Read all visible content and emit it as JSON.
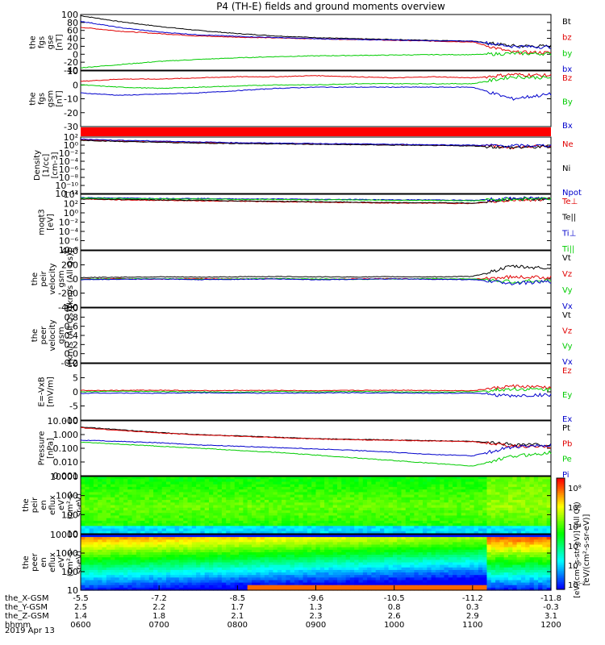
{
  "title": "P4 (TH-E) fields and ground moments overview",
  "date": "2019 Apr 13",
  "colors": {
    "black": "#000000",
    "red": "#e00000",
    "green": "#00cc00",
    "blue": "#0000cc"
  },
  "chart_data": [
    {
      "type": "line",
      "ylabel": [
        "the",
        "fgs",
        "gse",
        "[nT]"
      ],
      "yticks": [
        "100",
        "80",
        "60",
        "40",
        "20",
        "0",
        "-20",
        "-40"
      ],
      "ylim": [
        -40,
        100
      ],
      "series": [
        {
          "name": "Bt",
          "color": "black",
          "values": [
            97,
            82,
            70,
            60,
            52,
            46,
            42,
            39,
            37,
            35,
            33,
            21,
            20
          ]
        },
        {
          "name": "bz",
          "color": "red",
          "values": [
            68,
            58,
            52,
            46,
            43,
            41,
            39,
            37,
            35,
            33,
            31,
            5,
            4
          ]
        },
        {
          "name": "by",
          "color": "green",
          "values": [
            -34,
            -26,
            -18,
            -13,
            -9,
            -6,
            -4,
            -3,
            -2,
            -1,
            -1,
            2,
            1
          ]
        },
        {
          "name": "bx",
          "color": "blue",
          "values": [
            83,
            67,
            56,
            49,
            45,
            42,
            39,
            37,
            36,
            34,
            33,
            20,
            18
          ]
        }
      ]
    },
    {
      "type": "line",
      "ylabel": [
        "the",
        "fgs",
        "gsm",
        "[nT]"
      ],
      "yticks": [
        "10",
        "0",
        "-10",
        "-20",
        "-30"
      ],
      "ylim": [
        -38,
        10
      ],
      "series": [
        {
          "name": "Bz",
          "color": "red",
          "values": [
            1,
            3,
            3,
            4,
            5,
            5,
            6,
            5,
            4,
            5,
            4,
            7,
            6
          ]
        },
        {
          "name": "By",
          "color": "green",
          "values": [
            -2,
            -4,
            -5,
            -4,
            -3,
            -2,
            -2,
            -1,
            -1,
            -1,
            -1,
            5,
            4
          ]
        },
        {
          "name": "Bx",
          "color": "blue",
          "values": [
            -9,
            -11,
            -10,
            -9,
            -7,
            -5,
            -4,
            -4,
            -4,
            -4,
            -4,
            -14,
            -10
          ]
        }
      ]
    },
    {
      "type": "line",
      "ylabel": [
        "Density",
        "[1/cc]",
        "[cm-3]"
      ],
      "yticks": [
        "10²",
        "10⁰",
        "10⁻²",
        "10⁻⁴",
        "10⁻⁶",
        "10⁻⁸",
        "10⁻¹⁰",
        "10⁻¹²"
      ],
      "ylim": [
        -12,
        2
      ],
      "log": true,
      "series": [
        {
          "name": "Ne",
          "color": "red",
          "values": [
            1.3,
            1.0,
            0.8,
            0.6,
            0.5,
            0.4,
            0.3,
            0.2,
            0.1,
            0.0,
            -0.1,
            -0.5,
            -0.3
          ]
        },
        {
          "name": "Ni",
          "color": "black",
          "values": [
            1.2,
            0.9,
            0.7,
            0.5,
            0.4,
            0.3,
            0.2,
            0.1,
            0.0,
            -0.1,
            -0.2,
            -0.6,
            -0.4
          ]
        },
        {
          "name": "Npot",
          "color": "blue",
          "values": [
            1.5,
            1.2,
            1.0,
            0.8,
            0.6,
            0.5,
            0.4,
            0.3,
            0.2,
            0.1,
            0.0,
            -0.2,
            -0.1
          ]
        }
      ]
    },
    {
      "type": "line",
      "ylabel": [
        "moqt3",
        "[eV]"
      ],
      "yticks": [
        "10⁴",
        "10²",
        "10⁰",
        "10⁻²",
        "10⁻⁴",
        "10⁻⁶",
        "10⁻⁸"
      ],
      "ylim": [
        -8,
        4
      ],
      "log": true,
      "series": [
        {
          "name": "Te⊥",
          "color": "red",
          "values": [
            3.0,
            2.8,
            2.7,
            2.6,
            2.5,
            2.4,
            2.3,
            2.2,
            2.1,
            2.1,
            2.0,
            2.8,
            2.9
          ]
        },
        {
          "name": "Te||",
          "color": "black",
          "values": [
            3.0,
            2.9,
            2.8,
            2.7,
            2.6,
            2.5,
            2.4,
            2.3,
            2.2,
            2.2,
            2.1,
            2.9,
            3.0
          ]
        },
        {
          "name": "Ti⊥",
          "color": "blue",
          "values": [
            3.3,
            3.2,
            3.1,
            3.1,
            3.0,
            3.0,
            2.9,
            2.9,
            2.8,
            2.8,
            2.7,
            3.1,
            3.2
          ]
        },
        {
          "name": "Ti||",
          "color": "green",
          "values": [
            3.2,
            3.1,
            3.0,
            3.0,
            2.9,
            2.9,
            2.8,
            2.8,
            2.7,
            2.7,
            2.6,
            3.0,
            3.1
          ]
        }
      ]
    },
    {
      "type": "line",
      "ylabel": [
        "the",
        "peir",
        "velocity",
        "gsm",
        "[km/s (All Qs)]"
      ],
      "yticks": [
        "400",
        "200",
        "0",
        "-200",
        "-400"
      ],
      "ylim": [
        -400,
        400
      ],
      "series": [
        {
          "name": "Vt",
          "color": "black",
          "values": [
            20,
            25,
            30,
            25,
            30,
            35,
            30,
            28,
            32,
            30,
            35,
            180,
            150
          ]
        },
        {
          "name": "Vz",
          "color": "red",
          "values": [
            0,
            5,
            -5,
            5,
            0,
            5,
            -5,
            0,
            5,
            0,
            -5,
            30,
            20
          ]
        },
        {
          "name": "Vy",
          "color": "green",
          "values": [
            -5,
            0,
            5,
            -5,
            0,
            5,
            0,
            -5,
            0,
            5,
            0,
            -40,
            -20
          ]
        },
        {
          "name": "Vx",
          "color": "blue",
          "values": [
            -10,
            -5,
            0,
            -10,
            -5,
            0,
            -10,
            -5,
            0,
            -5,
            -10,
            -60,
            -40
          ]
        }
      ]
    },
    {
      "type": "line",
      "ylabel": [
        "the",
        "peer",
        "velocity",
        "gsm",
        "[km/s (All Qs)]"
      ],
      "yticks": [
        "1.0",
        "0.8",
        "0.6",
        "0.4",
        "0.2",
        "0.0",
        "-0.2"
      ],
      "ylim": [
        -0.2,
        1.0
      ],
      "series": [
        {
          "name": "Vt",
          "color": "black",
          "values": []
        },
        {
          "name": "Vz",
          "color": "red",
          "values": []
        },
        {
          "name": "Vy",
          "color": "green",
          "values": []
        },
        {
          "name": "Vx",
          "color": "blue",
          "values": []
        }
      ]
    },
    {
      "type": "line",
      "ylabel": [
        "E=-VxB",
        "[mV/m]"
      ],
      "yticks": [
        "10",
        "5",
        "0",
        "-5",
        "-10"
      ],
      "ylim": [
        -10,
        10
      ],
      "series": [
        {
          "name": "Ez",
          "color": "red",
          "values": [
            0.5,
            0.5,
            0.6,
            0.4,
            0.5,
            0.5,
            0.4,
            0.5,
            0.6,
            0.5,
            0.4,
            2.0,
            1.5
          ]
        },
        {
          "name": "Ey",
          "color": "green",
          "values": [
            0,
            0.2,
            0.1,
            0,
            -0.1,
            0.1,
            0,
            0.1,
            0,
            -0.1,
            0,
            1.0,
            0.8
          ]
        },
        {
          "name": "Ex",
          "color": "blue",
          "values": [
            -0.5,
            -0.4,
            -0.5,
            -0.3,
            -0.4,
            -0.5,
            -0.4,
            -0.3,
            -0.4,
            -0.5,
            -0.4,
            -1.5,
            -1.0
          ]
        }
      ]
    },
    {
      "type": "line",
      "ylabel": [
        "Pressure",
        "[nPa]"
      ],
      "yticks": [
        "10.000",
        "1.000",
        "0.100",
        "0.010",
        "0.001"
      ],
      "ylim": [
        -3,
        1
      ],
      "log": true,
      "series": [
        {
          "name": "Pt",
          "color": "black",
          "values": [
            0.55,
            0.35,
            0.15,
            0.0,
            -0.1,
            -0.2,
            -0.3,
            -0.35,
            -0.4,
            -0.45,
            -0.5,
            -0.7,
            -0.75
          ]
        },
        {
          "name": "Pb",
          "color": "red",
          "values": [
            0.5,
            0.3,
            0.12,
            -0.02,
            -0.12,
            -0.22,
            -0.32,
            -0.38,
            -0.42,
            -0.47,
            -0.52,
            -0.85,
            -0.9
          ]
        },
        {
          "name": "Pe",
          "color": "green",
          "values": [
            -0.55,
            -0.7,
            -0.85,
            -1.0,
            -1.15,
            -1.3,
            -1.5,
            -1.7,
            -1.9,
            -2.1,
            -2.3,
            -1.6,
            -1.3
          ]
        },
        {
          "name": "Pi",
          "color": "blue",
          "values": [
            -0.4,
            -0.5,
            -0.6,
            -0.75,
            -0.85,
            -0.95,
            -1.05,
            -1.15,
            -1.3,
            -1.45,
            -1.55,
            -0.9,
            -0.8
          ]
        }
      ]
    },
    {
      "type": "heatmap",
      "ylabel": [
        "the",
        "peir",
        "en",
        "eflux",
        "eV",
        "(cm²-s-",
        "sr-eV)"
      ],
      "yticks": [
        "10000",
        "1000",
        "100",
        "10"
      ],
      "ylim": [
        10,
        30000
      ]
    },
    {
      "type": "heatmap",
      "ylabel": [
        "the",
        "peer",
        "en",
        "eflux",
        "eV",
        "(cm²-s-",
        "sr-eV)"
      ],
      "yticks": [
        "10000",
        "1000",
        "100",
        "10"
      ],
      "ylim": [
        10,
        30000
      ]
    }
  ],
  "colorbar": {
    "ticks": [
      "10⁸",
      "10⁶",
      "10⁴",
      "10²",
      "10⁰",
      "10⁻²"
    ],
    "label": "[eV/(cm²-s-sr-eV)]",
    "alt_label": "[eV/(cm²-s-str-eV)] (All Qs)"
  },
  "x_axis": {
    "row_labels": [
      "the_X-GSM",
      "the_Y-GSM",
      "the_Z-GSM",
      "hhmm"
    ],
    "ticks": [
      [
        "-5.5",
        "2.5",
        "1.4",
        "0600"
      ],
      [
        "-7.2",
        "2.2",
        "1.8",
        "0700"
      ],
      [
        "-8.5",
        "1.7",
        "2.1",
        "0800"
      ],
      [
        "-9.6",
        "1.3",
        "2.3",
        "0900"
      ],
      [
        "-10.5",
        "0.8",
        "2.6",
        "1000"
      ],
      [
        "-11.2",
        "0.3",
        "2.9",
        "1100"
      ],
      [
        "-11.8",
        "-0.3",
        "3.1",
        "1200"
      ]
    ]
  }
}
